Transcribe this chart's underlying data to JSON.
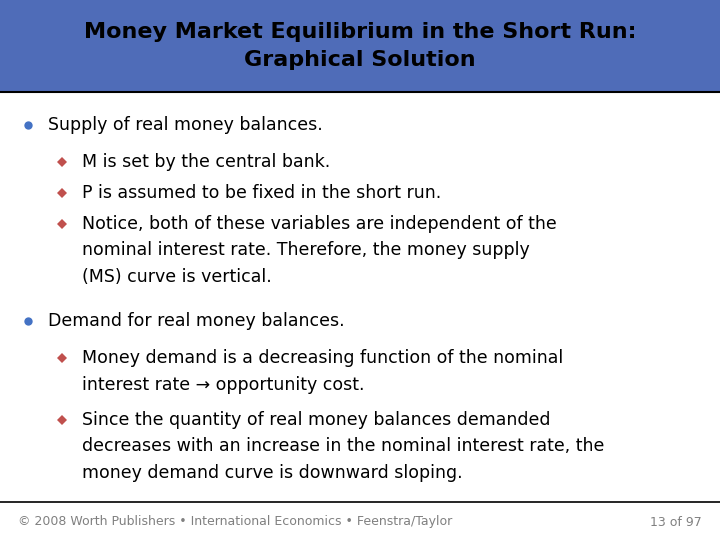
{
  "title_line1": "Money Market Equilibrium in the Short Run:",
  "title_line2": "Graphical Solution",
  "title_bg_color": "#4F6CB8",
  "title_text_color": "#000000",
  "body_bg_color": "#FFFFFF",
  "bullet_color": "#4472C4",
  "diamond_color": "#C0504D",
  "footer_text": "© 2008 Worth Publishers • International Economics • Feenstra/Taylor",
  "footer_right": "13 of 97",
  "footer_color": "#808080",
  "footer_line_color": "#000000",
  "title_font_size": 16,
  "main_font_size": 12.5,
  "footer_font_size": 9,
  "bullet1_text": "Supply of real money balances.",
  "sub1a": "M is set by the central bank.",
  "sub1b": "P is assumed to be fixed in the short run.",
  "sub1c_line1": "Notice, both of these variables are independent of the",
  "sub1c_line2": "nominal interest rate. Therefore, the money supply",
  "sub1c_line3": "(MS) curve is vertical.",
  "bullet2_text": "Demand for real money balances.",
  "sub2a_line1": "Money demand is a decreasing function of the nominal",
  "sub2a_line2": "interest rate → opportunity cost.",
  "sub2b_line1": "Since the quantity of real money balances demanded",
  "sub2b_line2": "decreases with an increase in the nominal interest rate, the",
  "sub2b_line3": "money demand curve is downward sloping."
}
